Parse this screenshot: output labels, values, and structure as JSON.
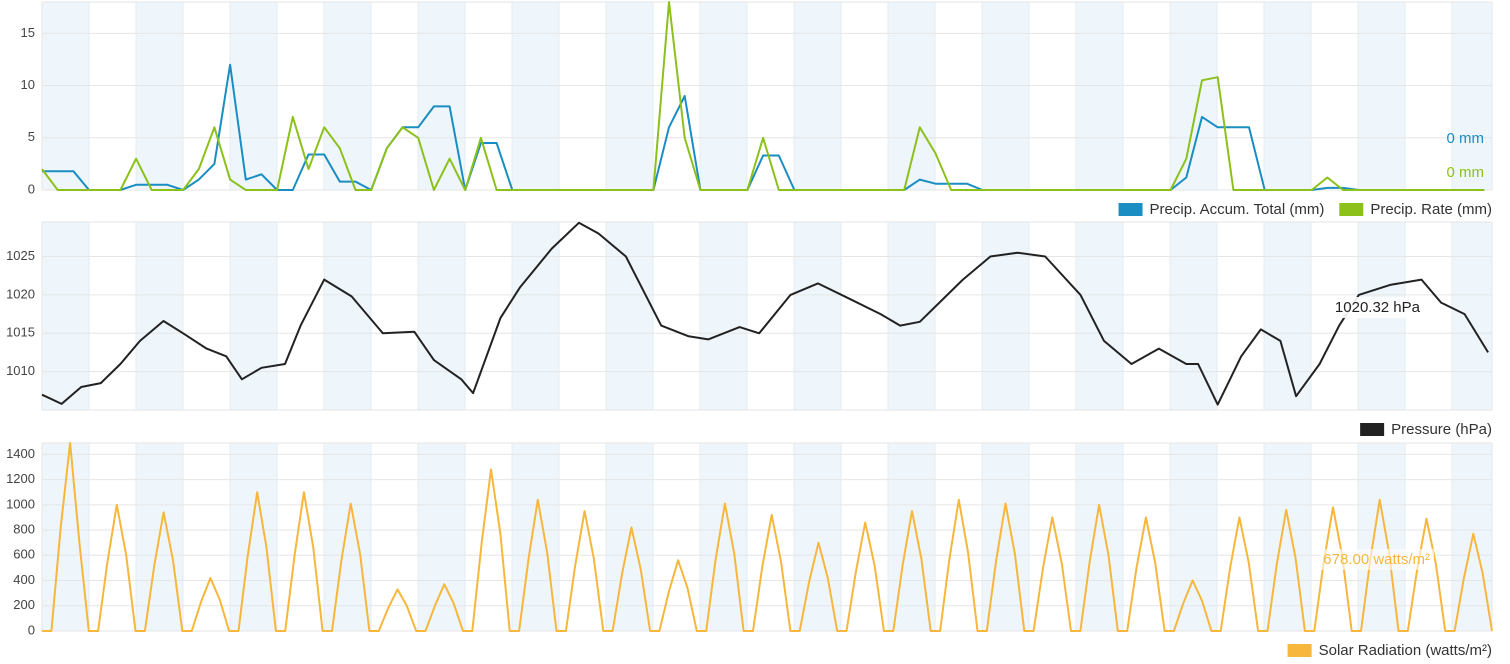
{
  "chart_data": [
    {
      "type": "line",
      "x": [
        0,
        4,
        8,
        12,
        16,
        20,
        24,
        28,
        32,
        36,
        40,
        44,
        48,
        52,
        56,
        60,
        64,
        68,
        72,
        76,
        80,
        84,
        88,
        92,
        96,
        100,
        104,
        108,
        112,
        116,
        120,
        124,
        128,
        132,
        136,
        140,
        144,
        148,
        152,
        156,
        160,
        164,
        168,
        172,
        176,
        180,
        184,
        188,
        192,
        196,
        200,
        204,
        208,
        212,
        216,
        220,
        224,
        228,
        232,
        236,
        240,
        244,
        248,
        252,
        256,
        260,
        264,
        268,
        272,
        276,
        280,
        284,
        288,
        292,
        296,
        300,
        304,
        308,
        312,
        316,
        320,
        324,
        328,
        332,
        336,
        340,
        344,
        348,
        352,
        356,
        360,
        364,
        368
      ],
      "xlim": [
        0,
        370
      ],
      "ylim": [
        0,
        18
      ],
      "yticks": [
        0,
        5,
        10,
        15
      ],
      "grid": true,
      "series": [
        {
          "name": "Precip. Accum. Total (mm)",
          "color": "#1a8dc2",
          "current_label": "0 mm",
          "values": [
            1.8,
            1.8,
            1.8,
            0,
            0,
            0,
            0.5,
            0.5,
            0.5,
            0,
            1,
            2.5,
            12,
            1,
            1.5,
            0,
            0,
            3.4,
            3.4,
            0.8,
            0.8,
            0,
            4,
            6,
            6,
            8,
            8,
            0,
            4.5,
            4.5,
            0,
            0,
            0,
            0,
            0,
            0,
            0,
            0,
            0,
            0,
            6,
            9,
            0,
            0,
            0,
            0,
            3.3,
            3.3,
            0,
            0,
            0,
            0,
            0,
            0,
            0,
            0,
            1,
            0.6,
            0.6,
            0.6,
            0,
            0,
            0,
            0,
            0,
            0,
            0,
            0,
            0,
            0,
            0,
            0,
            0,
            1.2,
            7,
            6,
            6,
            6,
            0,
            0,
            0,
            0,
            0.2,
            0.2,
            0,
            0,
            0,
            0,
            0,
            0,
            0,
            0,
            0
          ]
        },
        {
          "name": "Precip. Rate (mm)",
          "color": "#8cc11c",
          "current_label": "0 mm",
          "values": [
            2,
            0,
            0,
            0,
            0,
            0,
            3,
            0,
            0,
            0,
            2,
            6,
            1,
            0,
            0,
            0,
            7,
            2,
            6,
            4,
            0,
            0,
            4,
            6,
            5,
            0,
            3,
            0,
            5,
            0,
            0,
            0,
            0,
            0,
            0,
            0,
            0,
            0,
            0,
            0,
            18,
            5,
            0,
            0,
            0,
            0,
            5,
            0,
            0,
            0,
            0,
            0,
            0,
            0,
            0,
            0,
            6,
            3.5,
            0,
            0,
            0,
            0,
            0,
            0,
            0,
            0,
            0,
            0,
            0,
            0,
            0,
            0,
            0,
            3,
            10.5,
            10.8,
            0,
            0,
            0,
            0,
            0,
            0,
            1.2,
            0,
            0,
            0,
            0,
            0,
            0,
            0,
            0,
            0,
            0
          ]
        }
      ]
    },
    {
      "type": "line",
      "x": [
        0,
        5,
        10,
        15,
        20,
        25,
        31,
        36,
        42,
        47,
        51,
        56,
        62,
        66,
        72,
        79,
        87,
        95,
        100,
        107,
        110,
        117,
        122,
        130,
        137,
        142,
        149,
        158,
        165,
        170,
        178,
        183,
        191,
        198,
        206,
        214,
        219,
        224,
        229,
        235,
        242,
        249,
        256,
        265,
        271,
        278,
        285,
        292,
        295,
        300,
        306,
        311,
        316,
        320,
        326,
        331,
        336,
        344,
        352,
        357,
        363,
        369
      ],
      "xlim": [
        0,
        370
      ],
      "ylim": [
        1005,
        1029.5
      ],
      "yticks": [
        1010,
        1015,
        1020,
        1025
      ],
      "grid": true,
      "series": [
        {
          "name": "Pressure (hPa)",
          "color": "#222222",
          "current_label": "1020.32 hPa",
          "values": [
            1007,
            1005.8,
            1008,
            1008.5,
            1011,
            1014,
            1016.6,
            1015,
            1013,
            1012,
            1009,
            1010.5,
            1011,
            1016,
            1022,
            1019.8,
            1015,
            1015.2,
            1011.5,
            1009,
            1007.2,
            1017,
            1021,
            1026,
            1029.4,
            1028,
            1025,
            1016,
            1014.6,
            1014.2,
            1015.8,
            1015,
            1020,
            1021.5,
            1019.5,
            1017.5,
            1016,
            1016.5,
            1019,
            1022,
            1025,
            1025.5,
            1025,
            1020,
            1014,
            1011,
            1013,
            1011,
            1011,
            1005.7,
            1012,
            1015.5,
            1014,
            1006.8,
            1011,
            1016,
            1020,
            1021.3,
            1022,
            1019,
            1017.5,
            1012.5
          ]
        }
      ]
    },
    {
      "type": "line",
      "x": [
        0,
        0.2,
        0.4,
        0.6,
        0.8,
        1,
        1.2,
        1.4,
        1.6,
        1.8,
        2,
        2.2,
        2.4,
        2.6,
        2.8,
        3,
        3.2,
        3.4,
        3.6,
        3.8,
        4,
        4.2,
        4.4,
        4.6,
        4.8,
        5,
        5.2,
        5.4,
        5.6,
        5.8,
        6,
        6.2,
        6.4,
        6.6,
        6.8,
        7,
        7.2,
        7.4,
        7.6,
        7.8,
        8,
        8.2,
        8.4,
        8.6,
        8.8,
        9,
        9.2,
        9.4,
        9.6,
        9.8,
        10,
        10.2,
        10.4,
        10.6,
        10.8,
        11,
        11.2,
        11.4,
        11.6,
        11.8,
        12,
        12.2,
        12.4,
        12.6,
        12.8,
        13,
        13.2,
        13.4,
        13.6,
        13.8,
        14,
        14.2,
        14.4,
        14.6,
        14.8,
        15,
        15.2,
        15.4,
        15.6,
        15.8,
        16,
        16.2,
        16.4,
        16.6,
        16.8,
        17,
        17.2,
        17.4,
        17.6,
        17.8,
        18,
        18.2,
        18.4,
        18.6,
        18.8,
        19,
        19.2,
        19.4,
        19.6,
        19.8,
        20,
        20.2,
        20.4,
        20.6,
        20.8,
        21,
        21.2,
        21.4,
        21.6,
        21.8,
        22,
        22.2,
        22.4,
        22.6,
        22.8,
        23,
        23.2,
        23.4,
        23.6,
        23.8,
        24,
        24.2,
        24.4,
        24.6,
        24.8,
        25,
        25.2,
        25.4,
        25.6,
        25.8,
        26,
        26.2,
        26.4,
        26.6,
        26.8,
        27,
        27.2,
        27.4,
        27.6,
        27.8,
        28,
        28.2,
        28.4,
        28.6,
        28.8,
        29,
        29.2,
        29.4,
        29.6,
        29.8,
        30,
        30.2,
        30.4,
        30.6,
        30.8,
        31
      ],
      "xlim": [
        0,
        31
      ],
      "ylim": [
        0,
        1490
      ],
      "yticks": [
        0,
        200,
        400,
        600,
        800,
        1000,
        1200,
        1400
      ],
      "grid": true,
      "series": [
        {
          "name": "Solar Radiation (watts/m²)",
          "color": "#f6b73c",
          "current_label": "678.00 watts/m²",
          "values": [
            0,
            0,
            820,
            1490,
            700,
            0,
            0,
            550,
            1000,
            600,
            0,
            0,
            520,
            940,
            560,
            0,
            0,
            230,
            420,
            250,
            0,
            0,
            600,
            1100,
            660,
            0,
            0,
            600,
            1100,
            660,
            0,
            0,
            560,
            1010,
            610,
            0,
            0,
            180,
            330,
            200,
            0,
            0,
            200,
            370,
            220,
            0,
            0,
            700,
            1280,
            770,
            0,
            0,
            570,
            1040,
            620,
            0,
            0,
            520,
            950,
            570,
            0,
            0,
            450,
            820,
            490,
            0,
            0,
            310,
            560,
            340,
            0,
            0,
            560,
            1010,
            610,
            0,
            0,
            510,
            920,
            550,
            0,
            0,
            390,
            700,
            420,
            0,
            0,
            470,
            860,
            520,
            0,
            0,
            520,
            950,
            570,
            0,
            0,
            570,
            1040,
            620,
            0,
            0,
            560,
            1010,
            610,
            0,
            0,
            500,
            900,
            540,
            0,
            0,
            550,
            1000,
            600,
            0,
            0,
            500,
            900,
            540,
            0,
            0,
            220,
            400,
            240,
            0,
            0,
            500,
            900,
            540,
            0,
            0,
            530,
            960,
            580,
            0,
            0,
            540,
            980,
            590,
            0,
            0,
            570,
            1040,
            620,
            0,
            0,
            490,
            890,
            530,
            0,
            0,
            420,
            770,
            460,
            0
          ]
        }
      ]
    }
  ]
}
